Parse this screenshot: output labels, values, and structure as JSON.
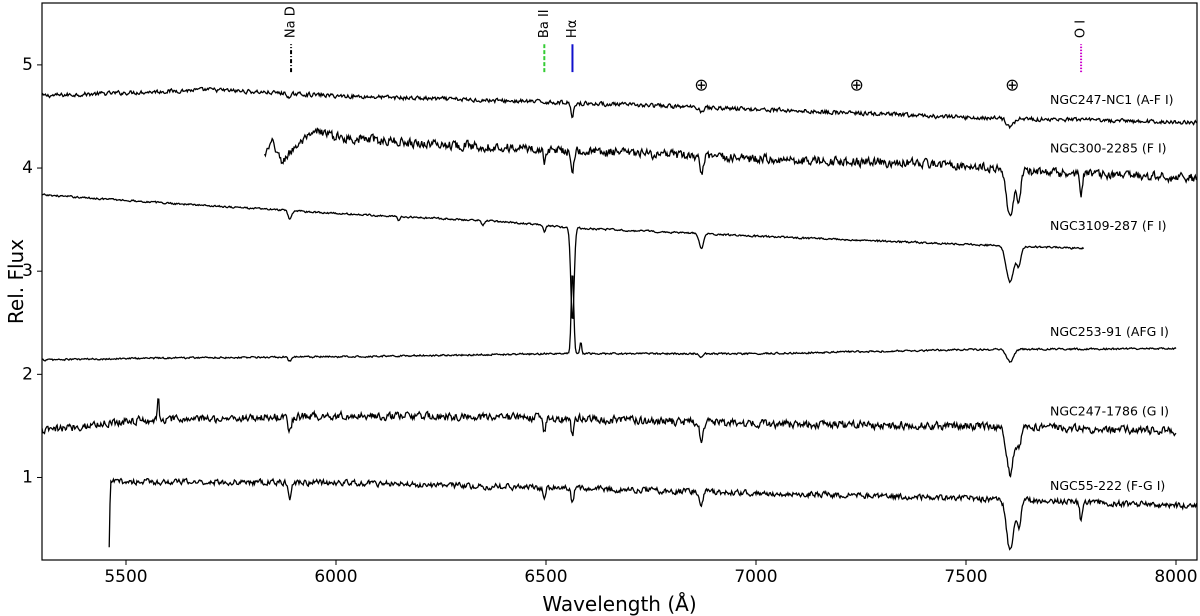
{
  "chart_data": {
    "type": "line",
    "xlabel": "Wavelength (Å)",
    "ylabel": "Rel. Flux",
    "xlim": [
      5300,
      8050
    ],
    "ylim": [
      0.2,
      5.6
    ],
    "xticks": [
      5500,
      6000,
      6500,
      7000,
      7500,
      8000
    ],
    "yticks": [
      1,
      2,
      3,
      4,
      5
    ],
    "grid": false,
    "series": [
      {
        "name": "NGC247-NC1 (A-F I)",
        "label_y": 4.62,
        "x_range": [
          5300,
          8050
        ],
        "baseline": [
          [
            5300,
            4.7
          ],
          [
            5700,
            4.76
          ],
          [
            6000,
            4.7
          ],
          [
            6500,
            4.64
          ],
          [
            7000,
            4.57
          ],
          [
            7500,
            4.49
          ],
          [
            8050,
            4.44
          ]
        ],
        "noise": 0.018,
        "features": [
          {
            "x": 5890,
            "depth": -0.05,
            "width": 4
          },
          {
            "x": 6563,
            "depth": -0.14,
            "width": 3
          },
          {
            "x": 6870,
            "depth": -0.04,
            "width": 4
          },
          {
            "x": 7605,
            "depth": -0.08,
            "width": 8
          }
        ]
      },
      {
        "name": "NGC300-2285 (F I)",
        "label_y": 4.15,
        "x_range": [
          5830,
          8050
        ],
        "baseline": [
          [
            5830,
            4.12
          ],
          [
            5850,
            4.25
          ],
          [
            5870,
            4.05
          ],
          [
            5900,
            4.2
          ],
          [
            5960,
            4.36
          ],
          [
            6000,
            4.3
          ],
          [
            6200,
            4.24
          ],
          [
            6500,
            4.18
          ],
          [
            7000,
            4.09
          ],
          [
            7500,
            4.03
          ],
          [
            7600,
            3.97
          ],
          [
            8050,
            3.9
          ]
        ],
        "noise": 0.04,
        "features": [
          {
            "x": 6496,
            "depth": -0.12,
            "width": 3
          },
          {
            "x": 6563,
            "depth": -0.18,
            "width": 3
          },
          {
            "x": 6870,
            "depth": -0.2,
            "width": 4
          },
          {
            "x": 7605,
            "depth": -0.45,
            "width": 8
          },
          {
            "x": 7626,
            "depth": -0.25,
            "width": 5
          },
          {
            "x": 7774,
            "depth": -0.2,
            "width": 3
          }
        ]
      },
      {
        "name": "NGC3109-287 (F I)",
        "label_y": 3.4,
        "x_range": [
          5300,
          7780
        ],
        "baseline": [
          [
            5300,
            3.74
          ],
          [
            5600,
            3.66
          ],
          [
            6000,
            3.56
          ],
          [
            6400,
            3.48
          ],
          [
            6560,
            3.42
          ],
          [
            7000,
            3.34
          ],
          [
            7500,
            3.26
          ],
          [
            7780,
            3.22
          ]
        ],
        "noise": 0.008,
        "features": [
          {
            "x": 5890,
            "depth": -0.09,
            "width": 4
          },
          {
            "x": 6150,
            "depth": -0.04,
            "width": 3
          },
          {
            "x": 6350,
            "depth": -0.05,
            "width": 3
          },
          {
            "x": 6496,
            "depth": -0.06,
            "width": 3
          },
          {
            "x": 6563,
            "depth": -0.9,
            "width": 4
          },
          {
            "x": 6870,
            "depth": -0.15,
            "width": 5
          },
          {
            "x": 7605,
            "depth": -0.35,
            "width": 9
          },
          {
            "x": 7626,
            "depth": -0.18,
            "width": 5
          }
        ]
      },
      {
        "name": "NGC253-91 (AFG I)",
        "label_y": 2.37,
        "x_range": [
          5300,
          8000
        ],
        "baseline": [
          [
            5300,
            2.14
          ],
          [
            5600,
            2.16
          ],
          [
            6000,
            2.17
          ],
          [
            6500,
            2.2
          ],
          [
            7000,
            2.2
          ],
          [
            7500,
            2.24
          ],
          [
            8000,
            2.25
          ]
        ],
        "noise": 0.008,
        "features": [
          {
            "x": 5890,
            "depth": -0.04,
            "width": 4
          },
          {
            "x": 6563,
            "depth": 0.8,
            "width": 3
          },
          {
            "x": 6583,
            "depth": 0.12,
            "width": 2
          },
          {
            "x": 6870,
            "depth": -0.04,
            "width": 4
          },
          {
            "x": 7605,
            "depth": -0.12,
            "width": 8
          }
        ]
      },
      {
        "name": "NGC247-1786 (G I)",
        "label_y": 1.6,
        "x_range": [
          5300,
          8000
        ],
        "baseline": [
          [
            5300,
            1.45
          ],
          [
            5500,
            1.55
          ],
          [
            6000,
            1.6
          ],
          [
            6500,
            1.58
          ],
          [
            7000,
            1.52
          ],
          [
            7500,
            1.5
          ],
          [
            8000,
            1.45
          ]
        ],
        "noise": 0.035,
        "features": [
          {
            "x": 5577,
            "depth": 0.2,
            "width": 2
          },
          {
            "x": 5890,
            "depth": -0.15,
            "width": 4
          },
          {
            "x": 6496,
            "depth": -0.15,
            "width": 3
          },
          {
            "x": 6563,
            "depth": -0.16,
            "width": 3
          },
          {
            "x": 6870,
            "depth": -0.16,
            "width": 4
          },
          {
            "x": 7605,
            "depth": -0.45,
            "width": 8
          },
          {
            "x": 7626,
            "depth": -0.2,
            "width": 5
          }
        ]
      },
      {
        "name": "NGC55-222 (F-G I)",
        "label_y": 0.88,
        "x_range": [
          5460,
          8050
        ],
        "baseline": [
          [
            5460,
            0.3
          ],
          [
            5463,
            0.96
          ],
          [
            6000,
            0.95
          ],
          [
            6500,
            0.9
          ],
          [
            7000,
            0.85
          ],
          [
            7500,
            0.8
          ],
          [
            8050,
            0.72
          ]
        ],
        "noise": 0.025,
        "features": [
          {
            "x": 5890,
            "depth": -0.15,
            "width": 4
          },
          {
            "x": 6496,
            "depth": -0.14,
            "width": 3
          },
          {
            "x": 6563,
            "depth": -0.14,
            "width": 3
          },
          {
            "x": 6870,
            "depth": -0.13,
            "width": 4
          },
          {
            "x": 7605,
            "depth": -0.5,
            "width": 8
          },
          {
            "x": 7626,
            "depth": -0.25,
            "width": 5
          },
          {
            "x": 7774,
            "depth": -0.18,
            "width": 3
          }
        ]
      }
    ],
    "line_markers": [
      {
        "label": "Na D",
        "x": 5893,
        "color": "#000000",
        "style": "dashdot"
      },
      {
        "label": "Ba II",
        "x": 6496,
        "color": "#33cc33",
        "style": "dashed"
      },
      {
        "label": "Hα",
        "x": 6563,
        "color": "#1010cc",
        "style": "solid"
      },
      {
        "label": "O I",
        "x": 7774,
        "color": "#cc00cc",
        "style": "dotted"
      }
    ],
    "telluric_symbol": "⊕",
    "telluric_positions": [
      6870,
      7240,
      7610
    ]
  }
}
